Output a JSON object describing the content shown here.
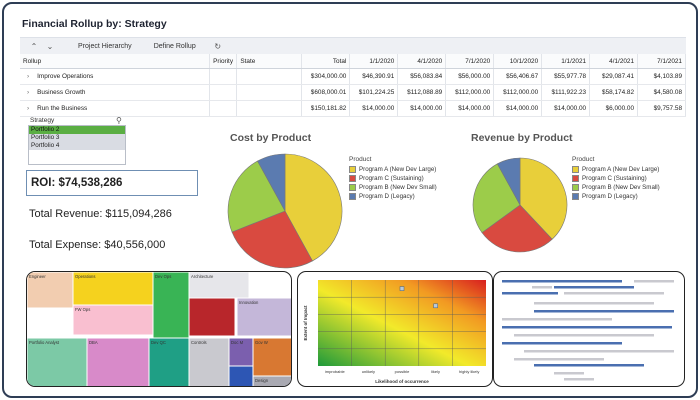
{
  "app": {
    "title": "Financial Rollup by: Strategy"
  },
  "toolbar": {
    "expand_icon": "double-chevron-up",
    "collapse_icon": "double-chevron-down",
    "project_hierarchy": "Project Hierarchy",
    "define_rollup": "Define Rollup",
    "refresh_icon": "refresh"
  },
  "grid": {
    "headers": {
      "rollup": "Rollup",
      "priority": "Priority",
      "state": "State",
      "columns": [
        "Total",
        "1/1/2020",
        "4/1/2020",
        "7/1/2020",
        "10/1/2020",
        "1/1/2021",
        "4/1/2021",
        "7/1/2021"
      ]
    },
    "rows": [
      {
        "name": "Improve Operations",
        "values": [
          "$304,000.00",
          "$46,390.91",
          "$56,083.84",
          "$56,000.00",
          "$56,406.67",
          "$55,977.78",
          "$29,087.41",
          "$4,103.89"
        ]
      },
      {
        "name": "Business Growth",
        "values": [
          "$608,000.01",
          "$101,224.25",
          "$112,088.89",
          "$112,000.00",
          "$112,000.00",
          "$111,922.23",
          "$58,174.82",
          "$4,580.08"
        ]
      },
      {
        "name": "Run the Business",
        "values": [
          "$150,181.82",
          "$14,000.00",
          "$14,000.00",
          "$14,000.00",
          "$14,000.00",
          "$14,000.00",
          "$6,000.00",
          "$9,757.58"
        ]
      }
    ]
  },
  "filter": {
    "label": "Strategy",
    "options": [
      {
        "label": "Portfolio 2",
        "selected": true
      },
      {
        "label": "Portfolio 3",
        "selected": false
      },
      {
        "label": "Portfolio 4",
        "selected": false
      }
    ]
  },
  "kpis": {
    "roi": "ROI:  $74,538,286",
    "total_revenue": "Total Revenue:  $115,094,286",
    "total_expense": "Total Expense:  $40,556,000"
  },
  "colors": {
    "program_a": "#e8cf3a",
    "program_c": "#d94a40",
    "program_b": "#9ccc4a",
    "program_d": "#5b7bb0"
  },
  "chart_data": [
    {
      "type": "pie",
      "title": "Cost by Product",
      "legend_title": "Product",
      "legend_position": "right",
      "series": [
        {
          "name": "Program A (New Dev Large)",
          "value": 42
        },
        {
          "name": "Program C (Sustaining)",
          "value": 27
        },
        {
          "name": "Program B (New Dev Small)",
          "value": 23
        },
        {
          "name": "Program D (Legacy)",
          "value": 8
        }
      ]
    },
    {
      "type": "pie",
      "title": "Revenue by Product",
      "legend_title": "Product",
      "legend_position": "right",
      "series": [
        {
          "name": "Program A (New Dev Large)",
          "value": 38
        },
        {
          "name": "Program C (Sustaining)",
          "value": 27
        },
        {
          "name": "Program B (New Dev Small)",
          "value": 27
        },
        {
          "name": "Program D (Legacy)",
          "value": 8
        }
      ]
    },
    {
      "type": "heatmap",
      "xlabel": "Likelihood of occurrence",
      "ylabel": "Extent of Impact",
      "x_categories": [
        "improbable",
        "unlikely",
        "possible",
        "likely",
        "highly likely"
      ],
      "points": [
        {
          "x": 3,
          "y": 5
        },
        {
          "x": 4,
          "y": 4
        }
      ]
    }
  ],
  "treemap": {
    "tiles": [
      {
        "label": "Engineer",
        "color": "#f2cdb0"
      },
      {
        "label": "Operations",
        "color": "#f5d21e"
      },
      {
        "label": "FW Ops",
        "color": "#f9bfd0"
      },
      {
        "label": "Dev Ops",
        "color": "#39b455"
      },
      {
        "label": "Architecture",
        "color": "#e6e6ea"
      },
      {
        "label": "Innovation",
        "color": "#c4b7d9"
      },
      {
        "label": "",
        "color": "#b8262b"
      },
      {
        "label": "Portfolio Analyst",
        "color": "#7cc9a6"
      },
      {
        "label": "DBA",
        "color": "#d88ac9"
      },
      {
        "label": "Dev QC",
        "color": "#1f9f85"
      },
      {
        "label": "Controls",
        "color": "#c9c9cf"
      },
      {
        "label": "Doc M",
        "color": "#7b5fae"
      },
      {
        "label": "Gov W",
        "color": "#d87832"
      },
      {
        "label": "",
        "color": "#2d56b4"
      },
      {
        "label": "Design",
        "color": "#a9a9b2"
      }
    ]
  }
}
